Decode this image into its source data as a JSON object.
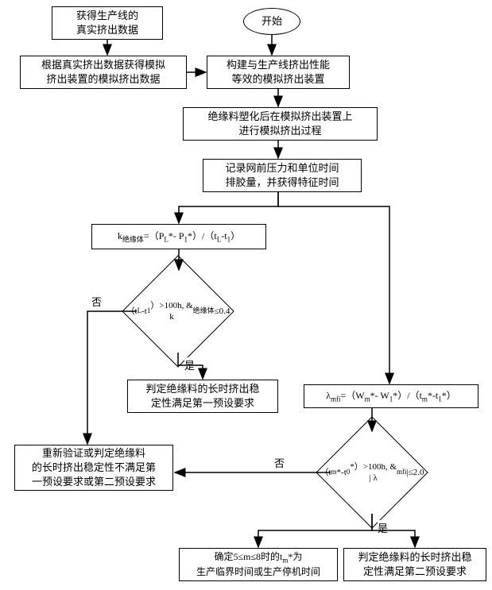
{
  "type": "flowchart",
  "background_color": "#ffffff",
  "stroke_color": "#000000",
  "font_family": "SimSun",
  "font_size_box": 13,
  "font_size_diamond": 12,
  "font_size_label": 13,
  "line_width": 1.5,
  "arrow_head": "filled-triangle",
  "nodes": {
    "n1": {
      "shape": "rect",
      "text": "获得生产线的\n真实挤出数据"
    },
    "n2": {
      "shape": "oval",
      "text": "开始"
    },
    "n3": {
      "shape": "rect",
      "text": "根据真实挤出数据获得模拟\n挤出装置的模拟挤出数据"
    },
    "n4": {
      "shape": "rect",
      "text": "构建与生产线挤出性能\n等效的模拟挤出装置"
    },
    "n5": {
      "shape": "rect",
      "text": "绝缘料塑化后在模拟挤出装置上\n进行模拟挤出过程"
    },
    "n6": {
      "shape": "rect",
      "text": "记录网前压力和单位时间\n排胶量，并获得特征时间"
    },
    "n7": {
      "shape": "rect",
      "text": "k绝缘体=（PL*- P1*）/（tL-t1）"
    },
    "n8": {
      "shape": "diamond",
      "text": "（tL-t1）>100h, &\nk绝缘体≤0.4"
    },
    "n9": {
      "shape": "rect",
      "text": "判定绝缘料的长时挤出稳\n定性满足第一预设要求"
    },
    "n10": {
      "shape": "rect",
      "text": "λmfi=（Wm*- W1*）/（tm*-t1*）"
    },
    "n11": {
      "shape": "rect",
      "text": "重新验证或判定绝缘料\n的长时挤出稳定性不满足第\n一预设要求或第二预设要求"
    },
    "n12": {
      "shape": "diamond",
      "text": "（tm*-t0*）>100h, &\n| λmfi |≤2.0"
    },
    "n13": {
      "shape": "rect",
      "text": "确定5≤m≤8时的tm*为\n生产临界时间或生产停机时间"
    },
    "n14": {
      "shape": "rect",
      "text": "判定绝缘料的长时挤出稳\n定性满足第二预设要求"
    }
  },
  "edge_labels": {
    "no1": "否",
    "yes1": "是",
    "no2": "否",
    "yes2": "是"
  },
  "edges": [
    [
      "n1",
      "n3"
    ],
    [
      "n2",
      "n4"
    ],
    [
      "n3",
      "n4"
    ],
    [
      "n4",
      "n5"
    ],
    [
      "n5",
      "n6"
    ],
    [
      "n6",
      "n7"
    ],
    [
      "n6",
      "n10-branch"
    ],
    [
      "n7",
      "n8"
    ],
    [
      "n8",
      "n9",
      "是"
    ],
    [
      "n8",
      "n11",
      "否"
    ],
    [
      "n10",
      "n12"
    ],
    [
      "n12",
      "n14",
      "是"
    ],
    [
      "n12",
      "n13",
      "是-branch"
    ],
    [
      "n12",
      "n11",
      "否"
    ]
  ]
}
